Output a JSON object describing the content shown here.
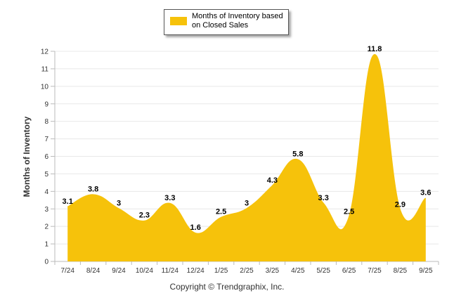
{
  "colors": {
    "fill": "#F6C20B",
    "stroke": "#F6C20B",
    "grid": "#e8e8e8",
    "axis": "#bbbbbb"
  },
  "legend": {
    "label": "Months of Inventory based on Closed Sales"
  },
  "footer": {
    "copyright": "Copyright © Trendgraphix, Inc."
  },
  "chart_data": {
    "type": "area",
    "title": "",
    "ylabel": "Months of Inventory",
    "xlabel": "",
    "ylim": [
      0,
      12
    ],
    "yticks": [
      0,
      1,
      2,
      3,
      4,
      5,
      6,
      7,
      8,
      9,
      10,
      11,
      12
    ],
    "grid": true,
    "legend_position": "top-center",
    "categories": [
      "7/24",
      "8/24",
      "9/24",
      "10/24",
      "11/24",
      "12/24",
      "1/25",
      "2/25",
      "3/25",
      "4/25",
      "5/25",
      "6/25",
      "7/25",
      "8/25",
      "9/25"
    ],
    "series": [
      {
        "name": "Months of Inventory based on Closed Sales",
        "values": [
          3.1,
          3.8,
          3,
          2.3,
          3.3,
          1.6,
          2.5,
          3,
          4.3,
          5.8,
          3.3,
          2.5,
          11.8,
          2.9,
          3.6
        ],
        "labels": [
          "3.1",
          "3.8",
          "3",
          "2.3",
          "3.3",
          "1.6",
          "2.5",
          "3",
          "4.3",
          "5.8",
          "3.3",
          "2.5",
          "11.8",
          "2.9",
          "3.6"
        ]
      }
    ]
  }
}
